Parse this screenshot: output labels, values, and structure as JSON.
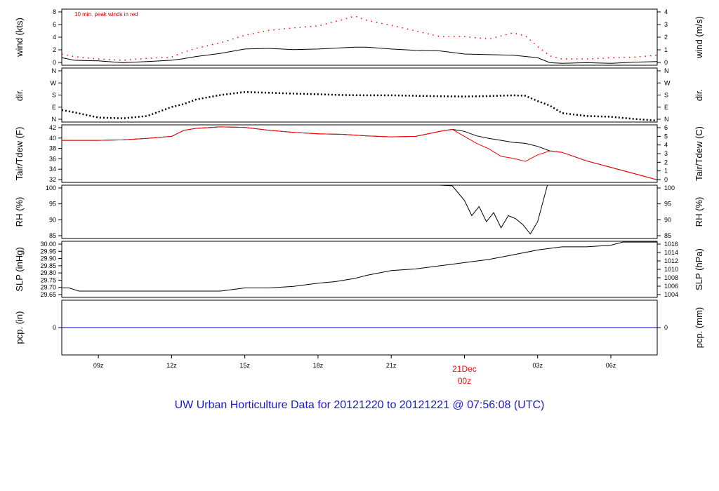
{
  "chart_data": {
    "type": "line",
    "title": "UW Urban Horticulture Data for 20121220  to  20121221 @ 07:56:08  (UTC)",
    "time_axis": {
      "unit": "hours UTC",
      "xlim": [
        7.5,
        31.9
      ],
      "ticks": [
        {
          "t": 9,
          "label": "09z"
        },
        {
          "t": 12,
          "label": "12z"
        },
        {
          "t": 15,
          "label": "15z"
        },
        {
          "t": 18,
          "label": "18z"
        },
        {
          "t": 21,
          "label": "21z"
        },
        {
          "t": 27,
          "label": "03z"
        },
        {
          "t": 30,
          "label": "06z"
        }
      ],
      "day_marker": {
        "t": 24,
        "date": "21Dec",
        "label": "00z",
        "color": "#ff0000"
      }
    },
    "panels": [
      {
        "id": "wind",
        "ylabel_left": "wind (kts)",
        "ylabel_right": "wind (m/s)",
        "ylim": [
          0,
          9
        ],
        "left_ticks": [
          "0",
          "2",
          "4",
          "6",
          "8"
        ],
        "right_ticks": [
          "0",
          "1",
          "2",
          "3",
          "4"
        ],
        "annotation": {
          "text": "10 min. peak winds in red",
          "color": "#cc0000"
        },
        "series": [
          {
            "name": "wind speed",
            "color": "#000000",
            "x": [
              7.5,
              8,
              9,
              10,
              11,
              12,
              12.4,
              13,
              14,
              15,
              16,
              17,
              18,
              19,
              19.5,
              20,
              21,
              22,
              23,
              24,
              25,
              26,
              27,
              27.5,
              28,
              29,
              30,
              31,
              31.9
            ],
            "y": [
              1.2,
              0.8,
              0.7,
              0.4,
              0.6,
              0.8,
              1.0,
              1.4,
              1.9,
              2.6,
              2.7,
              2.5,
              2.6,
              2.8,
              2.9,
              2.9,
              2.6,
              2.4,
              2.3,
              1.8,
              1.7,
              1.6,
              1.2,
              0.4,
              0.3,
              0.4,
              0.3,
              0.5,
              0.6
            ]
          },
          {
            "name": "10 min. peak winds",
            "color": "#ff0000",
            "x": [
              7.5,
              8,
              9,
              10,
              11,
              12,
              12.5,
              13,
              14,
              15,
              16,
              17,
              18,
              19,
              19.5,
              20,
              21,
              22,
              23,
              24,
              25,
              26,
              26.5,
              27,
              27.5,
              28,
              29,
              30,
              31,
              31.9
            ],
            "y": [
              1.8,
              1.4,
              1.0,
              0.8,
              1.1,
              1.3,
              2.1,
              2.7,
              3.6,
              4.8,
              5.6,
              6.0,
              6.3,
              7.3,
              7.9,
              7.2,
              6.4,
              5.5,
              4.6,
              4.6,
              4.2,
              5.2,
              4.7,
              3.0,
              1.5,
              1.0,
              1.0,
              1.2,
              1.3,
              1.6
            ]
          }
        ]
      },
      {
        "id": "dir",
        "ylabel_left": "dir.",
        "ylabel_right": "dir.",
        "ylim": [
          0,
          360
        ],
        "left_ticks": [
          "N",
          "E",
          "S",
          "W",
          "N"
        ],
        "right_ticks": [
          "N",
          "E",
          "S",
          "W",
          "N"
        ],
        "series": [
          {
            "name": "wind direction",
            "color": "#000000",
            "x": [
              7.5,
              8,
              9,
              10,
              11,
              11.5,
              12,
              12.5,
              13,
              14,
              15,
              16,
              17,
              18,
              19,
              20,
              21,
              22,
              23,
              24,
              25,
              26,
              26.5,
              27,
              27.5,
              28,
              29,
              30,
              31,
              31.9
            ],
            "y": [
              80,
              65,
              30,
              25,
              40,
              70,
              100,
              120,
              150,
              180,
              200,
              195,
              190,
              185,
              180,
              178,
              178,
              175,
              172,
              170,
              173,
              178,
              175,
              140,
              110,
              60,
              40,
              35,
              20,
              10
            ]
          }
        ]
      },
      {
        "id": "temp",
        "ylabel_left": "Tair/Tdew (F)",
        "ylabel_right": "Tair/Tdew (C)",
        "ylim": [
          32,
          43.5
        ],
        "left_ticks": [
          "32",
          "34",
          "36",
          "38",
          "40",
          "42"
        ],
        "right_ticks": [
          "0",
          "1",
          "2",
          "3",
          "4",
          "5",
          "6"
        ],
        "series": [
          {
            "name": "Tair",
            "color": "#000000",
            "x": [
              7.5,
              9,
              10,
              11,
              12,
              12.5,
              13,
              14,
              15,
              16,
              17,
              18,
              19,
              20,
              21,
              22,
              23,
              23.5,
              24,
              24.5,
              25,
              26,
              26.5,
              27,
              27.5,
              28,
              29,
              30,
              31,
              31.9
            ],
            "y": [
              40.4,
              40.4,
              40.5,
              40.8,
              41.2,
              42.4,
              42.8,
              43.1,
              43.0,
              42.4,
              42.0,
              41.7,
              41.6,
              41.3,
              41.1,
              41.2,
              42.2,
              42.6,
              42.2,
              41.3,
              40.8,
              40.0,
              39.8,
              39.2,
              38.3,
              38.0,
              36.3,
              35.0,
              33.7,
              32.5
            ]
          },
          {
            "name": "Tdew",
            "color": "#ff0000",
            "x": [
              7.5,
              9,
              10,
              11,
              12,
              12.5,
              13,
              14,
              15,
              16,
              17,
              18,
              19,
              20,
              21,
              22,
              23,
              23.5,
              24,
              24.5,
              25,
              25.5,
              26,
              26.5,
              27,
              27.5,
              28,
              29,
              30,
              31,
              31.9
            ],
            "y": [
              40.4,
              40.4,
              40.5,
              40.8,
              41.2,
              42.4,
              42.8,
              43.1,
              43.0,
              42.4,
              42.0,
              41.7,
              41.6,
              41.3,
              41.1,
              41.2,
              42.2,
              42.6,
              41.2,
              39.8,
              38.7,
              37.2,
              36.8,
              36.2,
              37.5,
              38.3,
              38.0,
              36.3,
              35.0,
              33.7,
              32.5
            ]
          }
        ]
      },
      {
        "id": "rh",
        "ylabel_left": "RH (%)",
        "ylabel_right": "RH (%)",
        "ylim": [
          82.5,
          100
        ],
        "left_ticks": [
          "85",
          "90",
          "95",
          "100"
        ],
        "right_ticks": [
          "85",
          "90",
          "95",
          "100"
        ],
        "series": [
          {
            "name": "RH",
            "color": "#000000",
            "x": [
              14.2,
              15,
              16,
              17,
              18,
              19,
              20,
              21,
              22,
              22.5,
              23,
              23.5,
              24,
              24.3,
              24.6,
              24.9,
              25.2,
              25.5,
              25.8,
              26.1,
              26.4,
              26.7,
              27,
              27.4,
              28,
              28.2
            ],
            "y": [
              100,
              100,
              100,
              100,
              100,
              100,
              100,
              100,
              100,
              100,
              100,
              99.8,
              95,
              90,
              93,
              88,
              91,
              86,
              90,
              89,
              87,
              84,
              88,
              100,
              100,
              100
            ]
          }
        ]
      },
      {
        "id": "slp",
        "ylabel_left": "SLP (inHg)",
        "ylabel_right": "SLP (hPa)",
        "ylim": [
          29.65,
          30.005
        ],
        "left_ticks": [
          "29.65",
          "29.70",
          "29.75",
          "29.80",
          "29.85",
          "29.90",
          "29.95",
          "30.00"
        ],
        "right_ticks": [
          "1004",
          "1006",
          "1008",
          "1010",
          "1012",
          "1014",
          "1016"
        ],
        "series": [
          {
            "name": "SLP",
            "color": "#000000",
            "x": [
              7.5,
              7.8,
              8.2,
              9,
              10,
              11,
              12,
              13,
              14,
              15,
              16,
              17,
              17.5,
              18,
              18.7,
              19.5,
              20,
              21,
              22,
              23,
              24,
              25,
              26,
              27,
              28,
              29,
              30,
              30.5,
              31,
              31.9
            ],
            "y": [
              29.71,
              29.71,
              29.69,
              29.69,
              29.69,
              29.69,
              29.69,
              29.69,
              29.69,
              29.71,
              29.71,
              29.72,
              29.73,
              29.74,
              29.75,
              29.77,
              29.79,
              29.82,
              29.83,
              29.85,
              29.87,
              29.89,
              29.92,
              29.95,
              29.97,
              29.97,
              29.98,
              30.0,
              30.0,
              30.0
            ]
          }
        ]
      },
      {
        "id": "pcp",
        "ylabel_left": "pcp. (in)",
        "ylabel_right": "pcp. (mm)",
        "ylim": [
          -1,
          1
        ],
        "left_ticks": [
          "0"
        ],
        "right_ticks": [
          "0"
        ],
        "series": [
          {
            "name": "precipitation",
            "color": "#0000cc",
            "x": [
              7.5,
              31.9
            ],
            "y": [
              0,
              0
            ]
          }
        ]
      }
    ]
  }
}
